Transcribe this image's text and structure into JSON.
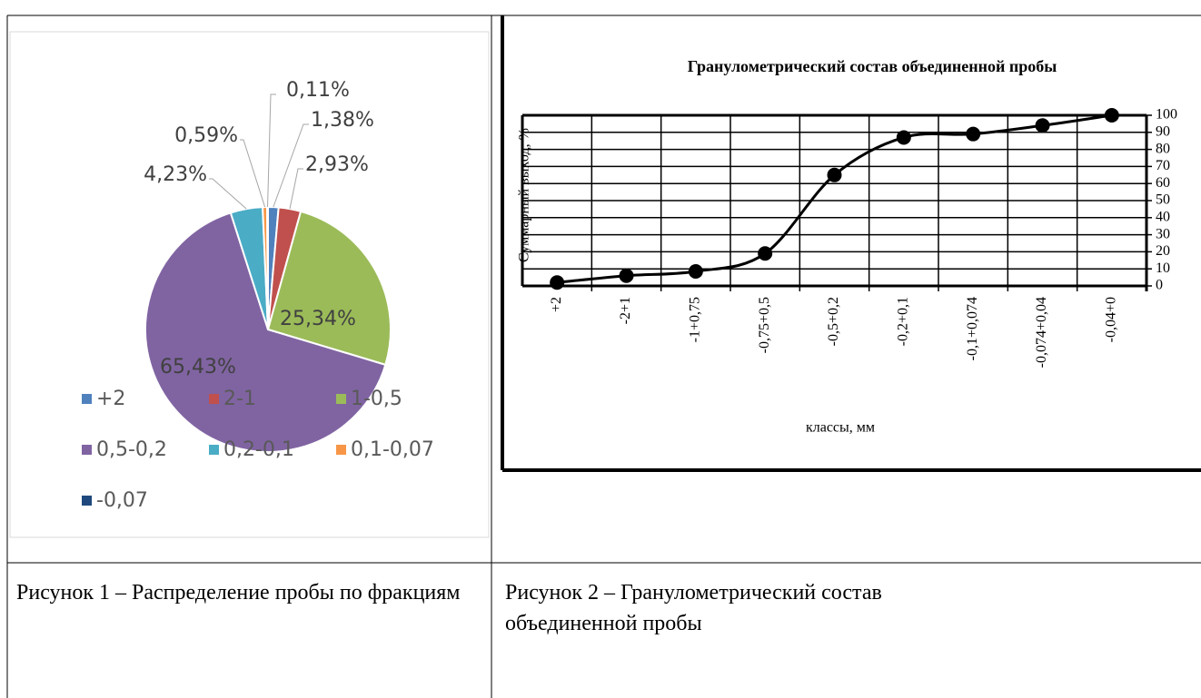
{
  "chart_data": [
    {
      "type": "pie",
      "categories": [
        "+2",
        "2-1",
        "1-0,5",
        "0,5-0,2",
        "0,2-0,1",
        "0,1-0,07",
        "-0,07"
      ],
      "values": [
        1.38,
        2.93,
        25.34,
        65.43,
        4.23,
        0.59,
        0.11
      ],
      "value_labels": [
        "1,38%",
        "2,93%",
        "25,34%",
        "65,43%",
        "4,23%",
        "0,59%",
        "0,11%"
      ],
      "colors": [
        "#4f81bd",
        "#c0504d",
        "#9bbb59",
        "#8064a2",
        "#4bacc6",
        "#f79646",
        "#1f497d"
      ],
      "legend": "bottom"
    },
    {
      "type": "line",
      "title": "Гранулометрический состав объединенной пробы",
      "ylabel": "Суммарный выход, %",
      "xlabel": "классы, мм",
      "categories": [
        "+2",
        "-2+1",
        "-1+0,75",
        "-0,75+0,5",
        "-0,5+0,2",
        "-0,2+0,1",
        "-0,1+0,074",
        "-0,074+0,04",
        "-0,04+0"
      ],
      "values": [
        2,
        6,
        8.5,
        19,
        65,
        87,
        89,
        94,
        100
      ],
      "color": "#000000",
      "ylim": [
        0,
        100
      ],
      "yticks": [
        0,
        10,
        20,
        30,
        40,
        50,
        60,
        70,
        80,
        90,
        100
      ],
      "grid": true
    }
  ],
  "captions": [
    "Рисунок 1 – Распределение пробы по фракциям",
    "Рисунок 2 – Гранулометрический состав объединенной пробы"
  ]
}
